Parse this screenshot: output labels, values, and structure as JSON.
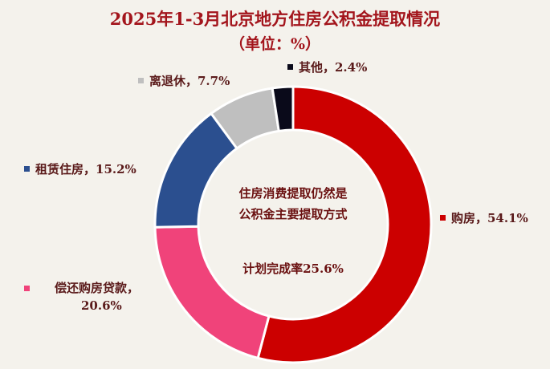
{
  "chart_data": {
    "type": "pie",
    "title": "2025年1-3月北京地方住房公积金提取情况",
    "subtitle": "（单位：%）",
    "slices": [
      {
        "label": "购房",
        "value": 54.1,
        "color": "#cc0000",
        "text": "购房，54.1%"
      },
      {
        "label": "偿还购房贷款",
        "value": 20.6,
        "color": "#f0437a",
        "text1": "偿还购房贷款，",
        "text2": "20.6%"
      },
      {
        "label": "租赁住房",
        "value": 15.2,
        "color": "#2b4f8f",
        "text": "租赁住房，15.2%"
      },
      {
        "label": "离退休",
        "value": 7.7,
        "color": "#bfbfbf",
        "text": "离退休，7.7%"
      },
      {
        "label": "其他",
        "value": 2.4,
        "color": "#0a0a1a",
        "text": "其他，2.4%"
      }
    ],
    "center_text": {
      "line1": "住房消费提取仍然是",
      "line2": "公积金主要提取方式",
      "line3": "计划完成率25.6%"
    }
  }
}
